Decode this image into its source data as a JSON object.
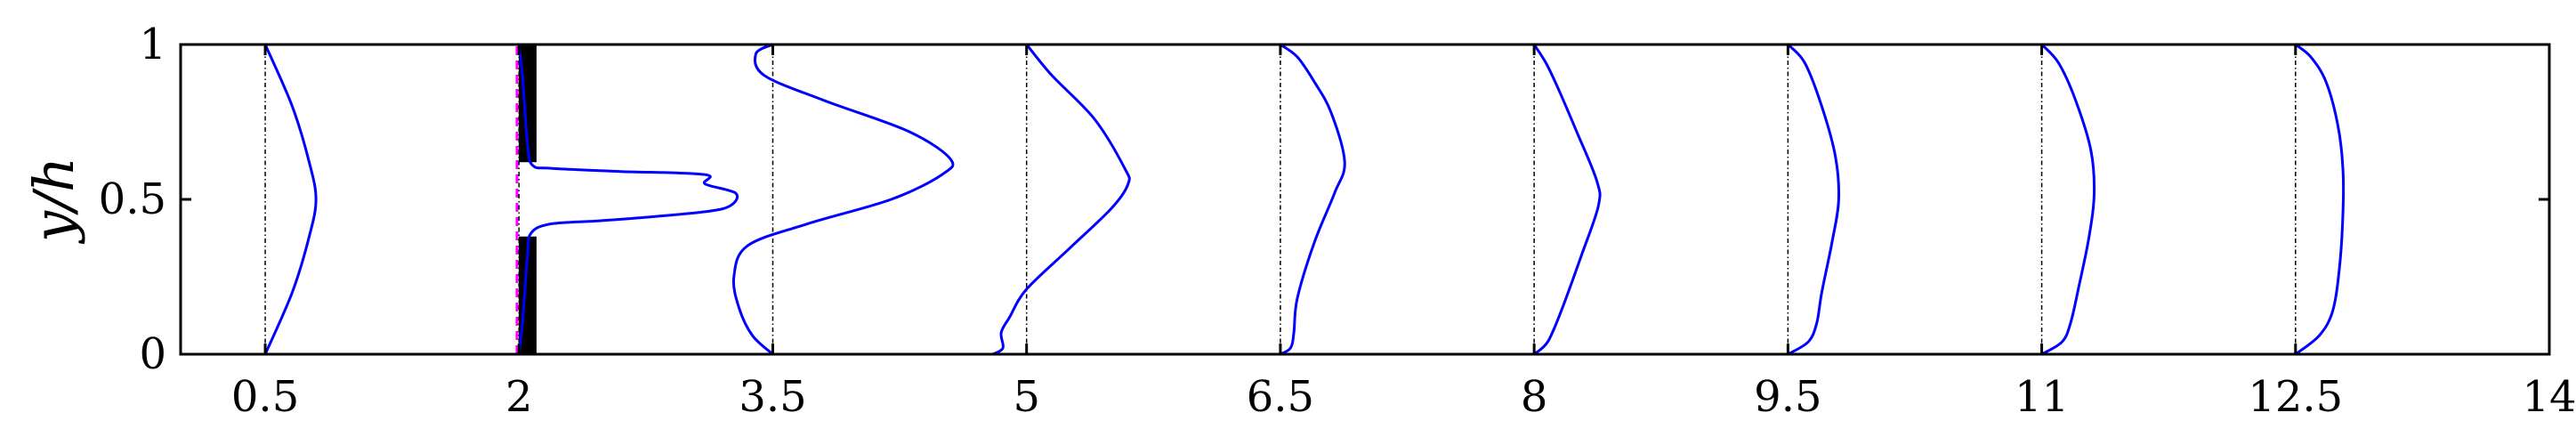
{
  "chart_data": {
    "type": "line",
    "ylabel": "y/h",
    "xlim": [
      0,
      14
    ],
    "ylim": [
      0,
      1
    ],
    "xticks": [
      0.5,
      2,
      3.5,
      5,
      6.5,
      8,
      9.5,
      11,
      12.5,
      14
    ],
    "xtick_labels": [
      "0.5",
      "2",
      "3.5",
      "5",
      "6.5",
      "8",
      "9.5",
      "11",
      "12.5",
      "14"
    ],
    "yticks": [
      0,
      0.5,
      1
    ],
    "ytick_labels": [
      "0",
      "0.5",
      "1"
    ],
    "grid": false,
    "baselines": [
      0.5,
      2,
      3.5,
      5,
      6.5,
      8,
      9.5,
      11,
      12.5
    ],
    "obstacle": {
      "x": 2.03,
      "segments": [
        [
          0,
          0.38
        ],
        [
          0.62,
          1
        ]
      ],
      "gap_line_color": "#ff00ff",
      "bar_color": "#000000"
    },
    "profile_color": "#0000ff",
    "series": [
      {
        "x0": 0.5,
        "points": [
          [
            0,
            0
          ],
          [
            0.16,
            0.2
          ],
          [
            0.26,
            0.38
          ],
          [
            0.3,
            0.5
          ],
          [
            0.26,
            0.62
          ],
          [
            0.16,
            0.8
          ],
          [
            0,
            1
          ]
        ]
      },
      {
        "x0": 2,
        "points": [
          [
            0,
            0
          ],
          [
            0.02,
            0.1
          ],
          [
            0.05,
            0.32
          ],
          [
            0.07,
            0.39
          ],
          [
            0.18,
            0.42
          ],
          [
            0.45,
            0.43
          ],
          [
            0.7,
            0.44
          ],
          [
            1.1,
            0.46
          ],
          [
            1.25,
            0.48
          ],
          [
            1.28,
            0.52
          ],
          [
            1.1,
            0.55
          ],
          [
            1.1,
            0.58
          ],
          [
            0.6,
            0.59
          ],
          [
            0.2,
            0.6
          ],
          [
            0.08,
            0.61
          ],
          [
            0.05,
            0.68
          ],
          [
            0.02,
            0.9
          ],
          [
            0,
            1
          ]
        ]
      },
      {
        "x0": 3.5,
        "points": [
          [
            0,
            0
          ],
          [
            -0.12,
            0.06
          ],
          [
            -0.2,
            0.15
          ],
          [
            -0.23,
            0.25
          ],
          [
            -0.15,
            0.35
          ],
          [
            0.2,
            0.42
          ],
          [
            0.7,
            0.5
          ],
          [
            1,
            0.58
          ],
          [
            1.05,
            0.63
          ],
          [
            0.8,
            0.72
          ],
          [
            0.3,
            0.82
          ],
          [
            -0.05,
            0.9
          ],
          [
            -0.1,
            0.97
          ],
          [
            0,
            1
          ]
        ]
      },
      {
        "x0": 5,
        "points": [
          [
            -0.2,
            0
          ],
          [
            -0.14,
            0.02
          ],
          [
            -0.15,
            0.07
          ],
          [
            -0.1,
            0.12
          ],
          [
            0,
            0.21
          ],
          [
            0.25,
            0.34
          ],
          [
            0.5,
            0.47
          ],
          [
            0.6,
            0.55
          ],
          [
            0.58,
            0.6
          ],
          [
            0.4,
            0.76
          ],
          [
            0.15,
            0.9
          ],
          [
            0,
            1
          ]
        ]
      },
      {
        "x0": 6.5,
        "points": [
          [
            0,
            0
          ],
          [
            0.06,
            0.02
          ],
          [
            0.08,
            0.07
          ],
          [
            0.1,
            0.18
          ],
          [
            0.2,
            0.36
          ],
          [
            0.32,
            0.52
          ],
          [
            0.38,
            0.62
          ],
          [
            0.3,
            0.78
          ],
          [
            0.2,
            0.88
          ],
          [
            0.1,
            0.96
          ],
          [
            0,
            1
          ]
        ]
      },
      {
        "x0": 8,
        "points": [
          [
            0,
            0
          ],
          [
            0.08,
            0.04
          ],
          [
            0.16,
            0.14
          ],
          [
            0.28,
            0.32
          ],
          [
            0.38,
            0.48
          ],
          [
            0.37,
            0.56
          ],
          [
            0.25,
            0.72
          ],
          [
            0.14,
            0.86
          ],
          [
            0.07,
            0.94
          ],
          [
            0,
            1
          ]
        ]
      },
      {
        "x0": 9.5,
        "points": [
          [
            0,
            0
          ],
          [
            0.12,
            0.04
          ],
          [
            0.17,
            0.1
          ],
          [
            0.2,
            0.2
          ],
          [
            0.26,
            0.36
          ],
          [
            0.3,
            0.5
          ],
          [
            0.28,
            0.64
          ],
          [
            0.2,
            0.8
          ],
          [
            0.1,
            0.94
          ],
          [
            0,
            1
          ]
        ]
      },
      {
        "x0": 11,
        "points": [
          [
            0,
            0
          ],
          [
            0.12,
            0.04
          ],
          [
            0.17,
            0.1
          ],
          [
            0.22,
            0.22
          ],
          [
            0.28,
            0.38
          ],
          [
            0.31,
            0.52
          ],
          [
            0.29,
            0.66
          ],
          [
            0.2,
            0.82
          ],
          [
            0.1,
            0.94
          ],
          [
            0,
            1
          ]
        ]
      },
      {
        "x0": 12.5,
        "points": [
          [
            0,
            0
          ],
          [
            0.14,
            0.06
          ],
          [
            0.22,
            0.14
          ],
          [
            0.26,
            0.28
          ],
          [
            0.28,
            0.45
          ],
          [
            0.28,
            0.6
          ],
          [
            0.25,
            0.74
          ],
          [
            0.18,
            0.88
          ],
          [
            0.09,
            0.96
          ],
          [
            0,
            1
          ]
        ]
      }
    ]
  }
}
